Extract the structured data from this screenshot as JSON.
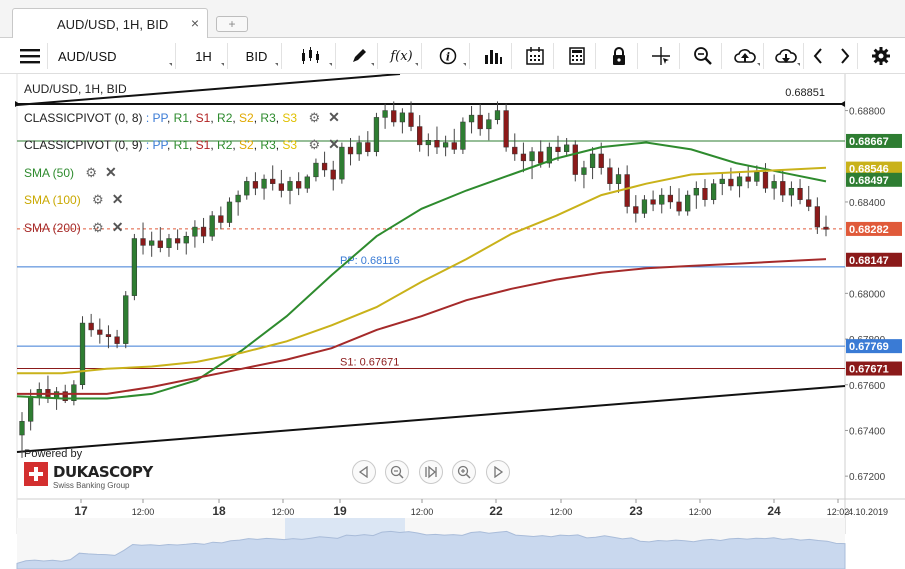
{
  "tab": {
    "label": "AUD/USD, 1H, BID",
    "close": "×",
    "add": "+"
  },
  "toolbar": {
    "instrument": "AUD/USD",
    "period": "1H",
    "side": "BID",
    "fx": "f(x)"
  },
  "legend": {
    "title": "AUD/USD, 1H, BID",
    "pivot1_name": "CLASSICPIVOT (0, 8)",
    "pivot2_name": "CLASSICPIVOT (0, 9)",
    "pivot_sep": ":",
    "pivot_items": [
      {
        "label": "PP",
        "color": "#3a7bd5"
      },
      {
        "label": "R1",
        "color": "#2e8b2e"
      },
      {
        "label": "S1",
        "color": "#b22222"
      },
      {
        "label": "R2",
        "color": "#2e8b2e"
      },
      {
        "label": "S2",
        "color": "#e0a800"
      },
      {
        "label": "R3",
        "color": "#2e8b2e"
      },
      {
        "label": "S3",
        "color": "#e0c000"
      }
    ],
    "sma50": "SMA (50)",
    "sma100": "SMA (100)",
    "sma200": "SMA (200)"
  },
  "branding": {
    "powered_by": "Powered by",
    "name": "DUKASCOPY",
    "sub": "Swiss Banking Group"
  },
  "chart_data": {
    "type": "candlestick",
    "title": "AUD/USD, 1H, BID",
    "ylim": [
      0.671,
      0.6896
    ],
    "y_ticks": [
      "0.68800",
      "0.68400",
      "0.68000",
      "0.67800",
      "0.67600",
      "0.67400",
      "0.67200"
    ],
    "x_ticks": [
      "17",
      "12:00",
      "18",
      "12:00",
      "19",
      "12:00",
      "22",
      "12:00",
      "23",
      "12:00",
      "24",
      "12:02"
    ],
    "x_tick_date": "4.10.2019",
    "price_labels": [
      {
        "text": "0.68667",
        "value": 0.68667,
        "color": "#2e7d32"
      },
      {
        "text": "0.68546",
        "value": 0.68546,
        "color": "#c9b21a"
      },
      {
        "text": "0.68497",
        "value": 0.68497,
        "color": "#2e7d32"
      },
      {
        "text": "0.68282",
        "value": 0.68282,
        "color": "#e05a3a"
      },
      {
        "text": "0.68147",
        "value": 0.68147,
        "color": "#8b1a1a"
      },
      {
        "text": "0.67769",
        "value": 0.67769,
        "color": "#3a7bd5"
      },
      {
        "text": "0.67671",
        "value": 0.67671,
        "color": "#8b1a1a"
      }
    ],
    "annotations": [
      {
        "text": "0.68851",
        "value": 0.68851
      },
      {
        "text": "PP: 0.68116",
        "value": 0.68116,
        "color": "#3a7bd5"
      },
      {
        "text": "S1: 0.67671",
        "value": 0.67671,
        "color": "#8b1a1a"
      }
    ],
    "pivot_lines": [
      {
        "name": "R1",
        "value": 0.68667,
        "color": "#2e7d32"
      },
      {
        "name": "PP",
        "value": 0.68116,
        "color": "#3a7bd5"
      },
      {
        "name": "PP",
        "value": 0.67769,
        "color": "#3a7bd5"
      },
      {
        "name": "S1",
        "value": 0.67671,
        "color": "#8b1a1a"
      }
    ],
    "last_price": 0.68282,
    "series": [
      {
        "name": "SMA (50)",
        "color": "#2e8b2e",
        "values": [
          0.6755,
          0.6754,
          0.6754,
          0.6756,
          0.6762,
          0.6775,
          0.679,
          0.6808,
          0.6825,
          0.6837,
          0.6845,
          0.6852,
          0.6859,
          0.6864,
          0.6866,
          0.6863,
          0.6857,
          0.6853,
          0.6849
        ]
      },
      {
        "name": "SMA (100)",
        "color": "#c9b21a",
        "values": [
          0.6765,
          0.6765,
          0.6767,
          0.6768,
          0.677,
          0.6774,
          0.6779,
          0.6786,
          0.6794,
          0.6805,
          0.6815,
          0.6826,
          0.6834,
          0.6843,
          0.6848,
          0.6852,
          0.6853,
          0.6854,
          0.6855
        ]
      },
      {
        "name": "SMA (200)",
        "color": "#a52a2a",
        "values": [
          0.6756,
          0.6756,
          0.6756,
          0.6759,
          0.6763,
          0.6767,
          0.6771,
          0.6776,
          0.6784,
          0.679,
          0.6797,
          0.6802,
          0.6806,
          0.6809,
          0.6811,
          0.6812,
          0.6813,
          0.6814,
          0.6815
        ]
      }
    ],
    "candles": [
      [
        0.6738,
        0.6748,
        0.6728,
        0.6744
      ],
      [
        0.6744,
        0.6758,
        0.674,
        0.6755
      ],
      [
        0.6755,
        0.6761,
        0.6751,
        0.6758
      ],
      [
        0.6758,
        0.6764,
        0.6752,
        0.6754
      ],
      [
        0.6754,
        0.6759,
        0.6749,
        0.6757
      ],
      [
        0.6757,
        0.676,
        0.6752,
        0.6753
      ],
      [
        0.6753,
        0.6762,
        0.6751,
        0.676
      ],
      [
        0.676,
        0.679,
        0.6758,
        0.6787
      ],
      [
        0.6787,
        0.6791,
        0.6781,
        0.6784
      ],
      [
        0.6784,
        0.6789,
        0.6778,
        0.6782
      ],
      [
        0.6782,
        0.6786,
        0.6776,
        0.6781
      ],
      [
        0.6781,
        0.6784,
        0.6776,
        0.6778
      ],
      [
        0.6778,
        0.6801,
        0.6776,
        0.6799
      ],
      [
        0.6799,
        0.6826,
        0.6797,
        0.6824
      ],
      [
        0.6824,
        0.6831,
        0.6817,
        0.6821
      ],
      [
        0.6821,
        0.6827,
        0.6816,
        0.6823
      ],
      [
        0.6823,
        0.6829,
        0.6818,
        0.682
      ],
      [
        0.682,
        0.6826,
        0.6816,
        0.6824
      ],
      [
        0.6824,
        0.6828,
        0.6819,
        0.6822
      ],
      [
        0.6822,
        0.6827,
        0.6817,
        0.6825
      ],
      [
        0.6825,
        0.6832,
        0.682,
        0.6829
      ],
      [
        0.6829,
        0.6833,
        0.6822,
        0.6825
      ],
      [
        0.6825,
        0.6836,
        0.6823,
        0.6834
      ],
      [
        0.6834,
        0.6838,
        0.6828,
        0.6831
      ],
      [
        0.6831,
        0.6842,
        0.6829,
        0.684
      ],
      [
        0.684,
        0.6845,
        0.6834,
        0.6843
      ],
      [
        0.6843,
        0.6851,
        0.6841,
        0.6849
      ],
      [
        0.6849,
        0.6853,
        0.6843,
        0.6846
      ],
      [
        0.6846,
        0.6852,
        0.6841,
        0.685
      ],
      [
        0.685,
        0.6856,
        0.6845,
        0.6848
      ],
      [
        0.6848,
        0.6854,
        0.6842,
        0.6845
      ],
      [
        0.6845,
        0.6851,
        0.6839,
        0.6849
      ],
      [
        0.6849,
        0.6853,
        0.6843,
        0.6846
      ],
      [
        0.6846,
        0.6852,
        0.6844,
        0.6851
      ],
      [
        0.6851,
        0.6859,
        0.6849,
        0.6857
      ],
      [
        0.6857,
        0.6862,
        0.6851,
        0.6854
      ],
      [
        0.6854,
        0.6858,
        0.6845,
        0.685
      ],
      [
        0.685,
        0.6866,
        0.6848,
        0.6864
      ],
      [
        0.6864,
        0.6868,
        0.6856,
        0.6861
      ],
      [
        0.6861,
        0.6869,
        0.6858,
        0.6866
      ],
      [
        0.6866,
        0.6871,
        0.686,
        0.6862
      ],
      [
        0.6862,
        0.6879,
        0.686,
        0.6877
      ],
      [
        0.6877,
        0.6883,
        0.6872,
        0.688
      ],
      [
        0.688,
        0.6884,
        0.6873,
        0.6875
      ],
      [
        0.6875,
        0.6881,
        0.687,
        0.6879
      ],
      [
        0.6879,
        0.6884,
        0.6871,
        0.6873
      ],
      [
        0.6873,
        0.6878,
        0.6862,
        0.6865
      ],
      [
        0.6865,
        0.687,
        0.686,
        0.6867
      ],
      [
        0.6867,
        0.6873,
        0.6861,
        0.6864
      ],
      [
        0.6864,
        0.6869,
        0.686,
        0.6866
      ],
      [
        0.6866,
        0.6872,
        0.6861,
        0.6863
      ],
      [
        0.6863,
        0.6877,
        0.6861,
        0.6875
      ],
      [
        0.6875,
        0.6882,
        0.687,
        0.6878
      ],
      [
        0.6878,
        0.6883,
        0.6869,
        0.6872
      ],
      [
        0.6872,
        0.6879,
        0.6867,
        0.6876
      ],
      [
        0.6876,
        0.6884,
        0.6874,
        0.688
      ],
      [
        0.688,
        0.6883,
        0.6862,
        0.6864
      ],
      [
        0.6864,
        0.687,
        0.6858,
        0.6861
      ],
      [
        0.6861,
        0.6866,
        0.6853,
        0.6858
      ],
      [
        0.6858,
        0.6864,
        0.685,
        0.6862
      ],
      [
        0.6862,
        0.6867,
        0.6855,
        0.6857
      ],
      [
        0.6857,
        0.6866,
        0.6855,
        0.6864
      ],
      [
        0.6864,
        0.6869,
        0.6858,
        0.6862
      ],
      [
        0.6862,
        0.6868,
        0.686,
        0.6865
      ],
      [
        0.6865,
        0.6867,
        0.6849,
        0.6852
      ],
      [
        0.6852,
        0.6858,
        0.6846,
        0.6855
      ],
      [
        0.6855,
        0.6864,
        0.685,
        0.6861
      ],
      [
        0.6861,
        0.6866,
        0.6852,
        0.6855
      ],
      [
        0.6855,
        0.6859,
        0.6845,
        0.6848
      ],
      [
        0.6848,
        0.6855,
        0.6844,
        0.6852
      ],
      [
        0.6852,
        0.6856,
        0.6835,
        0.6838
      ],
      [
        0.6838,
        0.6843,
        0.6831,
        0.6835
      ],
      [
        0.6835,
        0.6843,
        0.6833,
        0.6841
      ],
      [
        0.6841,
        0.6845,
        0.6836,
        0.6839
      ],
      [
        0.6839,
        0.6846,
        0.6835,
        0.6843
      ],
      [
        0.6843,
        0.6847,
        0.6837,
        0.684
      ],
      [
        0.684,
        0.6846,
        0.6834,
        0.6836
      ],
      [
        0.6836,
        0.6845,
        0.6834,
        0.6843
      ],
      [
        0.6843,
        0.6849,
        0.6837,
        0.6846
      ],
      [
        0.6846,
        0.685,
        0.6838,
        0.6841
      ],
      [
        0.6841,
        0.685,
        0.6839,
        0.6848
      ],
      [
        0.6848,
        0.6853,
        0.6843,
        0.685
      ],
      [
        0.685,
        0.6855,
        0.6845,
        0.6847
      ],
      [
        0.6847,
        0.6853,
        0.6842,
        0.6851
      ],
      [
        0.6851,
        0.6856,
        0.6846,
        0.6849
      ],
      [
        0.6849,
        0.6856,
        0.6847,
        0.6853
      ],
      [
        0.6853,
        0.6857,
        0.6844,
        0.6846
      ],
      [
        0.6846,
        0.6852,
        0.6841,
        0.6849
      ],
      [
        0.6849,
        0.6854,
        0.684,
        0.6843
      ],
      [
        0.6843,
        0.6849,
        0.6838,
        0.6846
      ],
      [
        0.6846,
        0.685,
        0.6839,
        0.6841
      ],
      [
        0.6841,
        0.6847,
        0.6836,
        0.6838
      ],
      [
        0.6838,
        0.6842,
        0.6826,
        0.6829
      ],
      [
        0.6829,
        0.6834,
        0.6825,
        0.6828
      ]
    ]
  }
}
